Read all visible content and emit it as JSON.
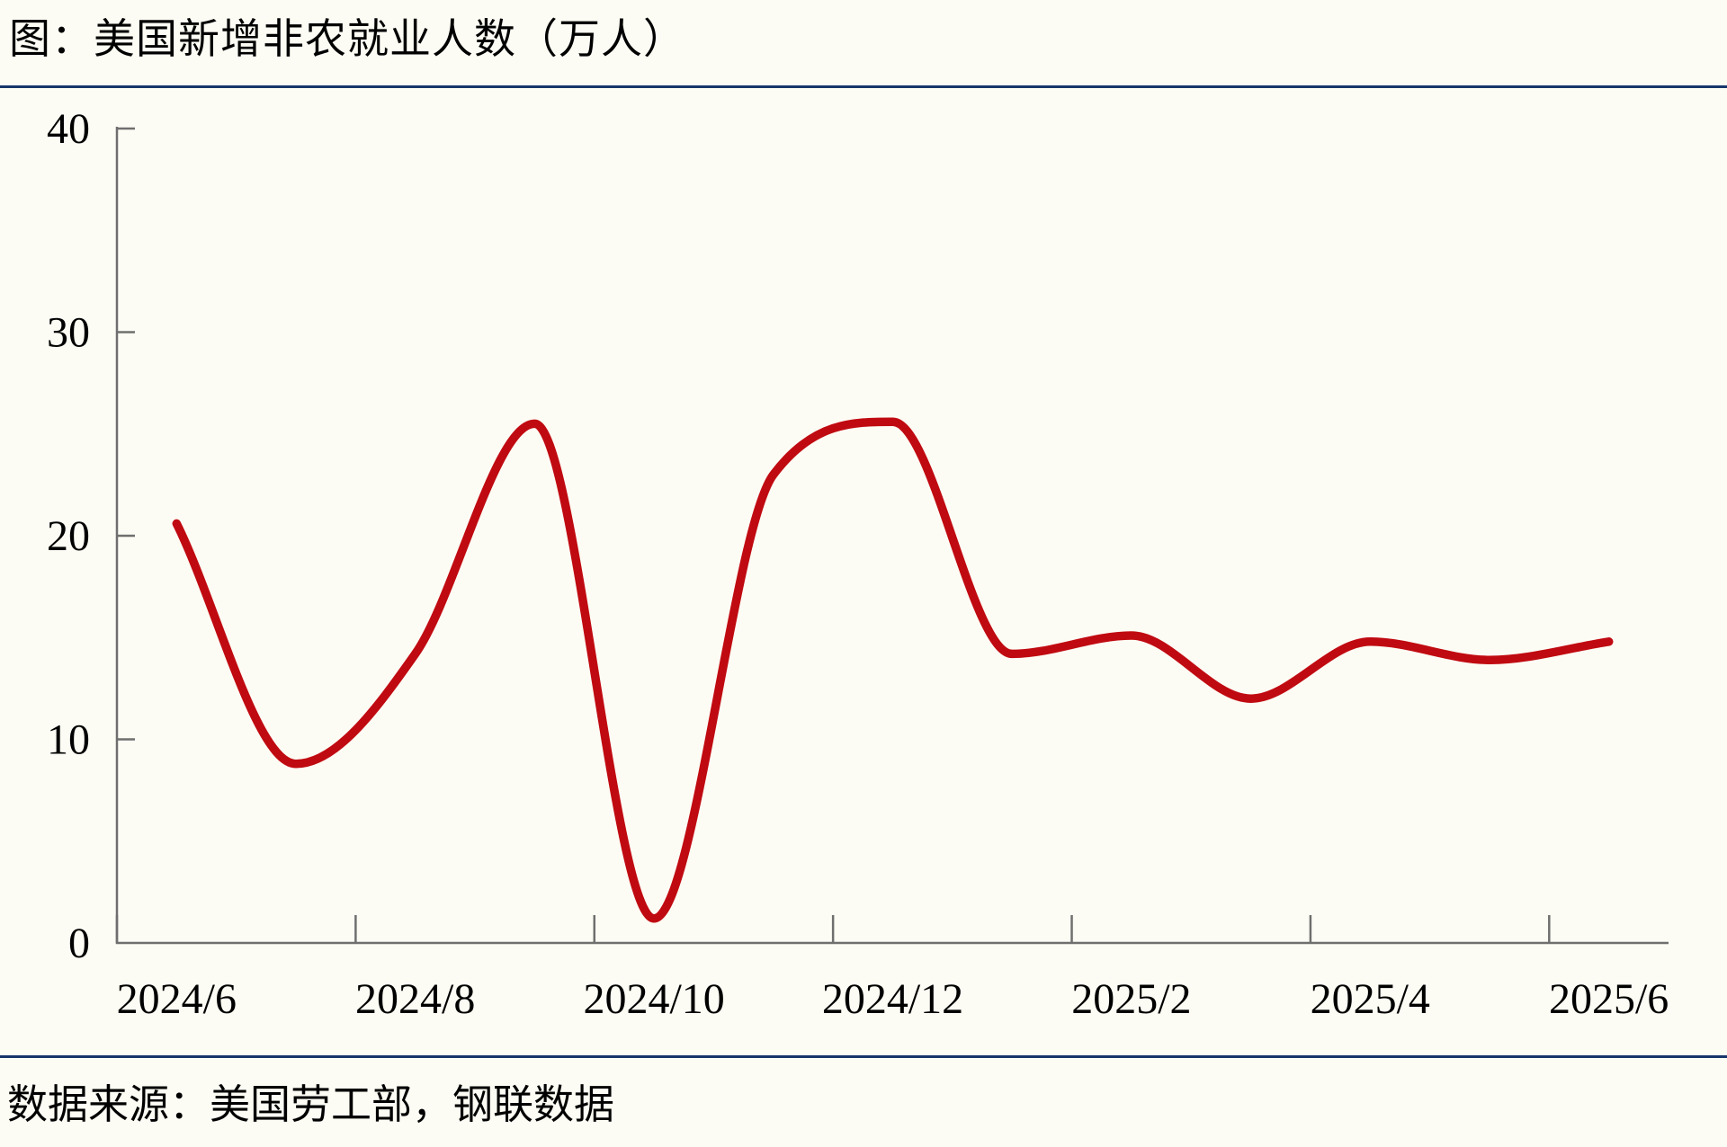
{
  "page": {
    "title": "图：美国新增非农就业人数（万人）",
    "source": "数据来源：美国劳工部，钢联数据",
    "background_color": "#fdfcf4",
    "divider_color": "#17356b",
    "text_color": "#000000"
  },
  "chart_data": {
    "type": "line",
    "title": "图：美国新增非农就业人数（万人）",
    "x": [
      "2024/6",
      "2024/7",
      "2024/8",
      "2024/9",
      "2024/10",
      "2024/11",
      "2024/12",
      "2025/1",
      "2025/2",
      "2025/3",
      "2025/4",
      "2025/5",
      "2025/6"
    ],
    "values": [
      20.6,
      8.8,
      14.2,
      25.5,
      1.2,
      23.0,
      25.6,
      14.2,
      15.1,
      12.0,
      14.8,
      13.9,
      14.8
    ],
    "x_tick_labels": [
      "2024/6",
      "2024/8",
      "2024/10",
      "2024/12",
      "2025/2",
      "2025/4",
      "2025/6"
    ],
    "y_tick_labels": [
      "0",
      "10",
      "20",
      "30",
      "40"
    ],
    "ylim": [
      0,
      40
    ],
    "smooth": true,
    "grid": false,
    "legend": "none",
    "markers": "none",
    "line_color": "#c00a11",
    "axis_color": "#6f6f6f",
    "label_color": "#000000"
  }
}
